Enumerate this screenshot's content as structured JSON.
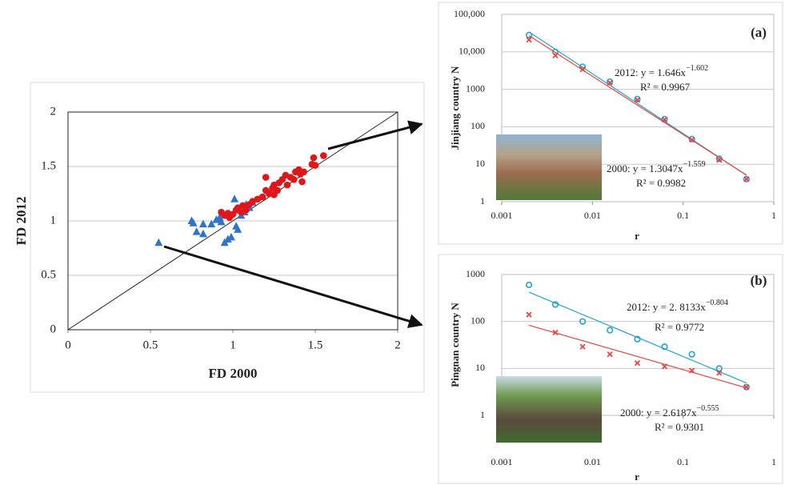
{
  "chart_data": [
    {
      "type": "scatter",
      "x_label": "FD 2000",
      "y_label": "FD 2012",
      "xlim": [
        0,
        2
      ],
      "xticks": [
        0,
        0.5,
        1,
        1.5,
        2
      ],
      "ylim": [
        0,
        2
      ],
      "yticks": [
        0,
        0.5,
        1,
        1.5,
        2
      ],
      "grid": true,
      "diagonal": true,
      "series": [
        {
          "color": "#2e75c8",
          "marker": "triangle",
          "x": [
            0.55,
            0.75,
            0.76,
            0.78,
            0.82,
            0.82,
            0.87,
            0.9,
            0.92,
            0.93,
            0.95,
            0.97,
            0.99,
            1.01,
            1.02,
            1.03,
            1.05,
            1.07,
            1.08,
            1.1,
            1.12
          ],
          "values": [
            0.8,
            1.0,
            0.98,
            0.9,
            0.97,
            0.88,
            0.97,
            1.01,
            1.03,
            0.99,
            0.8,
            0.83,
            0.85,
            1.2,
            0.95,
            0.92,
            1.05,
            1.08,
            1.15,
            1.12,
            1.17
          ]
        },
        {
          "color": "#e0161b",
          "marker": "circle",
          "x": [
            0.93,
            0.95,
            0.97,
            0.98,
            1.0,
            1.02,
            1.03,
            1.05,
            1.06,
            1.08,
            1.1,
            1.12,
            1.15,
            1.18,
            1.2,
            1.22,
            1.24,
            1.25,
            1.27,
            1.28,
            1.3,
            1.32,
            1.33,
            1.35,
            1.37,
            1.38,
            1.4,
            1.41,
            1.42,
            1.43,
            1.48,
            1.5,
            1.49,
            1.55,
            1.2,
            1.25
          ],
          "values": [
            1.08,
            1.05,
            1.07,
            1.03,
            1.06,
            1.1,
            1.12,
            1.08,
            1.14,
            1.1,
            1.15,
            1.18,
            1.2,
            1.22,
            1.28,
            1.25,
            1.3,
            1.33,
            1.28,
            1.35,
            1.38,
            1.42,
            1.33,
            1.4,
            1.38,
            1.45,
            1.47,
            1.43,
            1.36,
            1.45,
            1.52,
            1.51,
            1.58,
            1.6,
            1.4,
            1.24
          ]
        }
      ]
    },
    {
      "type": "scatter",
      "panel_label": "(a)",
      "x_label": "r",
      "y_label": "Jinjiang country N",
      "xlog": true,
      "ylog": true,
      "xlim": [
        0.001,
        1
      ],
      "xticks": [
        0.001,
        0.01,
        0.1,
        1
      ],
      "ylim": [
        1,
        100000
      ],
      "yticks": [
        1,
        10,
        100,
        1000,
        {
          "value": 10000,
          "label": "10,000"
        },
        {
          "value": 100000,
          "label": "100,000"
        }
      ],
      "grid": true,
      "series": [
        {
          "color": "#1fa3d6",
          "marker": "open-circle",
          "trendline": true,
          "x": [
            0.002,
            0.0039,
            0.0078,
            0.0156,
            0.0313,
            0.0625,
            0.125,
            0.25,
            0.5
          ],
          "values": [
            28000,
            10000,
            4000,
            1600,
            550,
            160,
            47,
            14,
            4
          ]
        },
        {
          "color": "#e8453c",
          "marker": "cross",
          "trendline": true,
          "x": [
            0.002,
            0.0039,
            0.0078,
            0.0156,
            0.0313,
            0.0625,
            0.125,
            0.25,
            0.5
          ],
          "values": [
            21000,
            8000,
            3400,
            1500,
            520,
            155,
            45,
            13,
            4
          ]
        }
      ],
      "annotations": [
        {
          "text": "2012: y = 1.646x",
          "exponent": "−1.602",
          "r2": "R² = 0.9967"
        },
        {
          "text": "2000: y = 1.3047x",
          "exponent": "−1.559",
          "r2": "R² = 0.9982"
        }
      ]
    },
    {
      "type": "scatter",
      "panel_label": "(b)",
      "x_label": "r",
      "y_label": "Pingnan country N",
      "xlog": true,
      "ylog": true,
      "xlim": [
        0.001,
        1
      ],
      "xticks": [
        0.001,
        0.01,
        0.1,
        1
      ],
      "ylim": [
        1,
        1000
      ],
      "yticks": [
        1,
        10,
        100,
        1000
      ],
      "grid": true,
      "series": [
        {
          "color": "#1fa3d6",
          "marker": "open-circle",
          "trendline": true,
          "x": [
            0.002,
            0.0039,
            0.0078,
            0.0156,
            0.0313,
            0.0625,
            0.125,
            0.25,
            0.5
          ],
          "values": [
            600,
            230,
            100,
            65,
            42,
            29,
            20,
            10,
            4
          ]
        },
        {
          "color": "#e8453c",
          "marker": "cross",
          "trendline": true,
          "x": [
            0.002,
            0.0039,
            0.0078,
            0.0156,
            0.0313,
            0.0625,
            0.125,
            0.25,
            0.5
          ],
          "values": [
            140,
            58,
            29,
            20,
            13,
            11,
            9,
            8,
            4
          ]
        }
      ],
      "annotations": [
        {
          "text": "2012: y = 2. 8133x",
          "exponent": "−0.804",
          "r2": "R² = 0.9772"
        },
        {
          "text": "2000: y = 2.6187x",
          "exponent": "−0.555",
          "r2": "R² = 0.9301"
        }
      ]
    }
  ]
}
